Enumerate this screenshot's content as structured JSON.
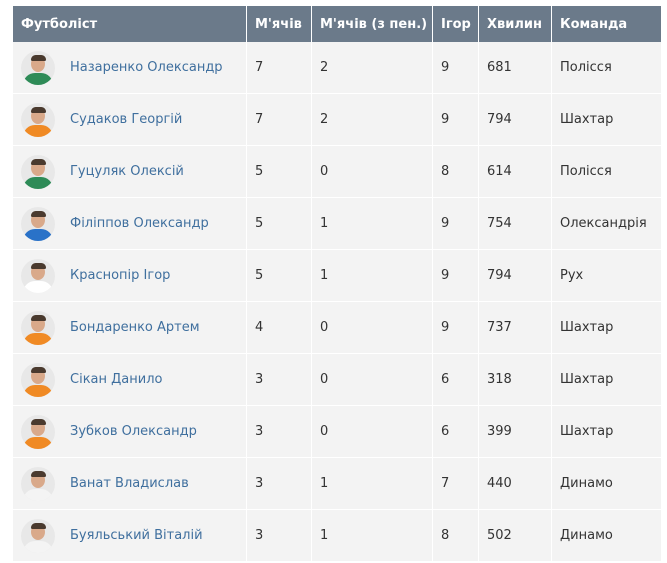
{
  "table": {
    "headers": [
      "Футболіст",
      "М'ячів",
      "М'ячів (з пен.)",
      "Ігор",
      "Хвилин",
      "Команда"
    ],
    "rows": [
      {
        "name": "Назаренко Олександр",
        "goals": "7",
        "pen": "2",
        "games": "9",
        "minutes": "681",
        "team": "Полісся",
        "avatar_icon": "player-photo-icon",
        "shirt_color": "#2e8b57"
      },
      {
        "name": "Судаков Георгій",
        "goals": "7",
        "pen": "2",
        "games": "9",
        "minutes": "794",
        "team": "Шахтар",
        "avatar_icon": "player-photo-icon",
        "shirt_color": "#f08a24"
      },
      {
        "name": "Гуцуляк Олексій",
        "goals": "5",
        "pen": "0",
        "games": "8",
        "minutes": "614",
        "team": "Полісся",
        "avatar_icon": "player-photo-icon",
        "shirt_color": "#2e8b57"
      },
      {
        "name": "Філіппов Олександр",
        "goals": "5",
        "pen": "1",
        "games": "9",
        "minutes": "754",
        "team": "Олександрія",
        "avatar_icon": "player-photo-icon",
        "shirt_color": "#2a72c8"
      },
      {
        "name": "Краснопір Ігор",
        "goals": "5",
        "pen": "1",
        "games": "9",
        "minutes": "794",
        "team": "Рух",
        "avatar_icon": "player-photo-icon",
        "shirt_color": "#ffffff"
      },
      {
        "name": "Бондаренко Артем",
        "goals": "4",
        "pen": "0",
        "games": "9",
        "minutes": "737",
        "team": "Шахтар",
        "avatar_icon": "player-photo-icon",
        "shirt_color": "#f08a24"
      },
      {
        "name": "Сікан Данило",
        "goals": "3",
        "pen": "0",
        "games": "6",
        "minutes": "318",
        "team": "Шахтар",
        "avatar_icon": "player-photo-icon",
        "shirt_color": "#f08a24"
      },
      {
        "name": "Зубков Олександр",
        "goals": "3",
        "pen": "0",
        "games": "6",
        "minutes": "399",
        "team": "Шахтар",
        "avatar_icon": "player-photo-icon",
        "shirt_color": "#f08a24"
      },
      {
        "name": "Ванат Владислав",
        "goals": "3",
        "pen": "1",
        "games": "7",
        "minutes": "440",
        "team": "Динамо",
        "avatar_icon": "player-photo-icon",
        "shirt_color": "#f4f4f4"
      },
      {
        "name": "Буяльський Віталій",
        "goals": "3",
        "pen": "1",
        "games": "8",
        "minutes": "502",
        "team": "Динамо",
        "avatar_icon": "player-photo-icon",
        "shirt_color": "#f4f4f4"
      }
    ]
  }
}
